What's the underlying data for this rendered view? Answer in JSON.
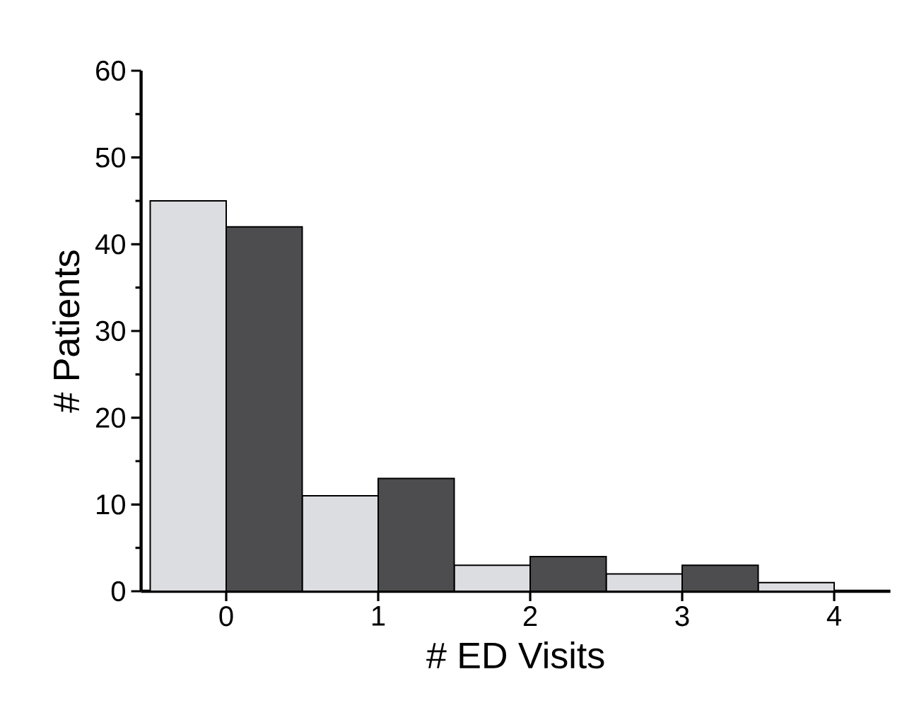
{
  "chart_data": {
    "type": "bar",
    "xlabel": "# ED Visits",
    "ylabel": "# Patients",
    "categories": [
      "0",
      "1",
      "2",
      "3",
      "4"
    ],
    "series": [
      {
        "color": "#dcdde0",
        "values": [
          45,
          11,
          3,
          2,
          1
        ]
      },
      {
        "color": "#4d4d4f",
        "values": [
          42,
          13,
          4,
          3,
          null
        ]
      }
    ],
    "ylim": [
      0,
      60
    ],
    "yticks": [
      0,
      10,
      20,
      30,
      40,
      50,
      60
    ],
    "grid": false
  }
}
